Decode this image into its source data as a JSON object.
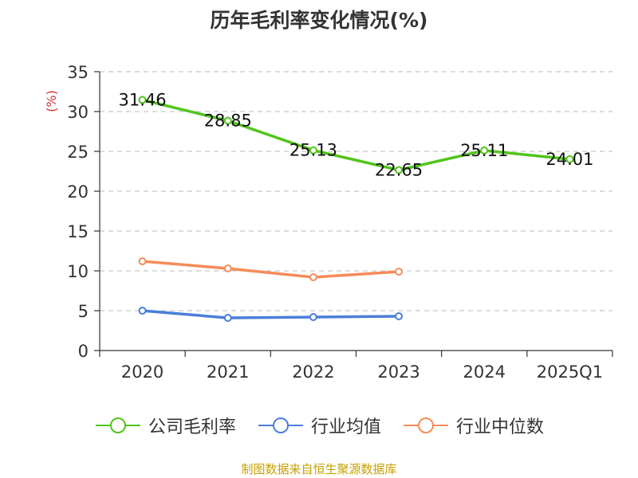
{
  "chart_data": {
    "type": "line",
    "title": "历年毛利率变化情况(%)",
    "ylabel": "(%)",
    "ylim": [
      0,
      35
    ],
    "yticks": [
      0,
      5,
      10,
      15,
      20,
      25,
      30,
      35
    ],
    "categories": [
      "2020",
      "2021",
      "2022",
      "2023",
      "2024",
      "2025Q1"
    ],
    "grid": true,
    "legend_position": "bottom",
    "series": [
      {
        "name": "公司毛利率",
        "color": "#52c41a",
        "values": [
          31.46,
          28.85,
          25.13,
          22.65,
          25.11,
          24.01
        ],
        "labels": [
          "31.46",
          "28.85",
          "25.13",
          "22.65",
          "25.11",
          "24.01"
        ]
      },
      {
        "name": "行业均值",
        "color": "#4a7fd8",
        "values": [
          5.0,
          4.1,
          4.2,
          4.3,
          null,
          null
        ]
      },
      {
        "name": "行业中位数",
        "color": "#f58b5a",
        "values": [
          11.2,
          10.3,
          9.2,
          9.9,
          null,
          null
        ]
      }
    ],
    "source": "制图数据来自恒生聚源数据库"
  }
}
